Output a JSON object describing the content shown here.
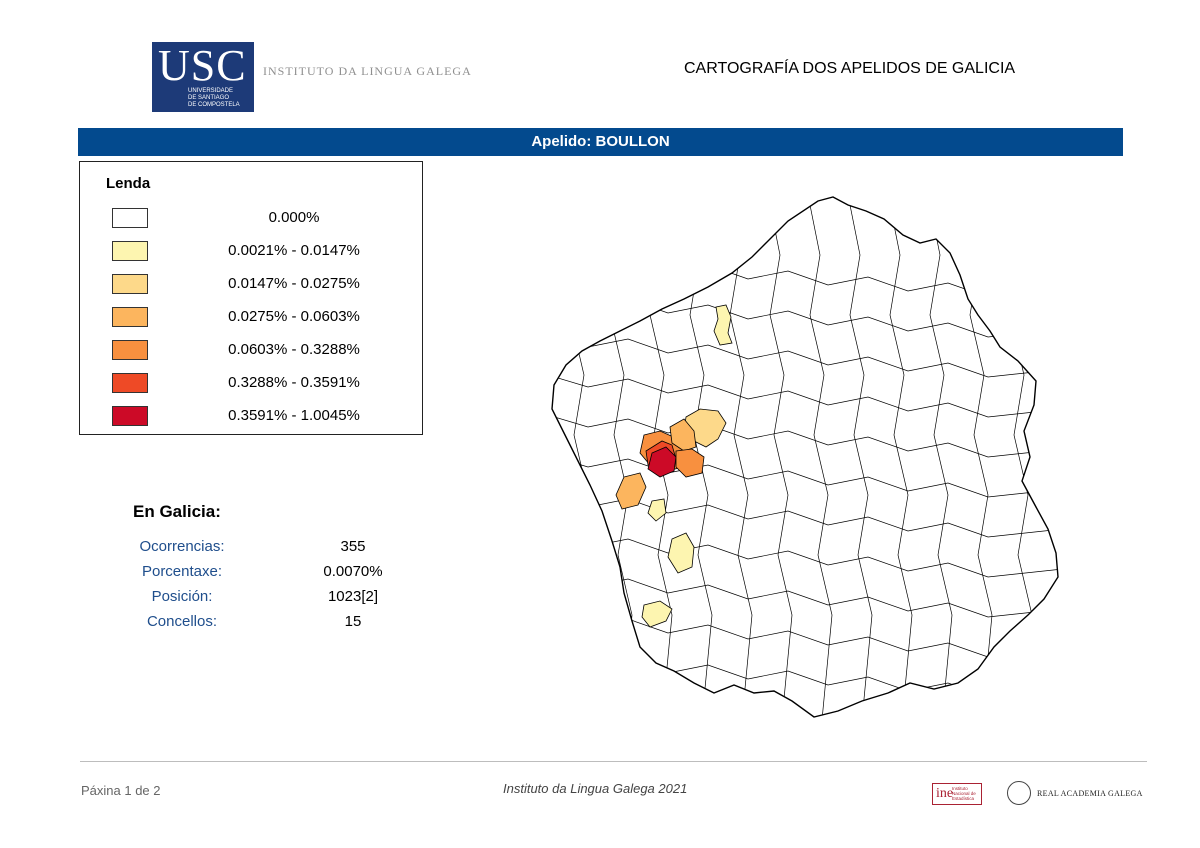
{
  "header": {
    "usc_letters": "USC",
    "usc_subtitle": [
      "UNIVERSIDADE",
      "DE SANTIAGO",
      "DE COMPOSTELA"
    ],
    "institute_name": "INSTITUTO DA LINGUA GALEGA",
    "doc_title": "CARTOGRAFÍA DOS APELIDOS DE GALICIA"
  },
  "band_title": "Apelido: BOULLON",
  "legend": {
    "title": "Lenda",
    "items": [
      {
        "range": "0.000%",
        "color": "#ffffff"
      },
      {
        "range": "0.0021% - 0.0147%",
        "color": "#fdf5b0"
      },
      {
        "range": "0.0147% - 0.0275%",
        "color": "#fdd98a"
      },
      {
        "range": "0.0275% - 0.0603%",
        "color": "#fcb55e"
      },
      {
        "range": "0.0603% - 0.3288%",
        "color": "#f8903f"
      },
      {
        "range": "0.3288% - 0.3591%",
        "color": "#ee4a26"
      },
      {
        "range": "0.3591% - 1.0045%",
        "color": "#cc0a27"
      }
    ]
  },
  "stats": {
    "title": "En Galicia:",
    "rows": [
      {
        "label": "Ocorrencias:",
        "value": "355"
      },
      {
        "label": "Porcentaxe:",
        "value": "0.0070%"
      },
      {
        "label": "Posición:",
        "value": "1023[2]"
      },
      {
        "label": "Concellos:",
        "value": "15"
      }
    ]
  },
  "footer": {
    "page": "Páxina 1 de 2",
    "institute": "Instituto da Lingua Galega 2021",
    "ine_mark": "ine",
    "ine_text": [
      "Instituto",
      "Nacional de",
      "Estadística"
    ],
    "rag_text": "REAL ACADEMIA GALEGA"
  },
  "map": {
    "accent_colors": {
      "border": "#000000",
      "blank": "#ffffff"
    }
  }
}
